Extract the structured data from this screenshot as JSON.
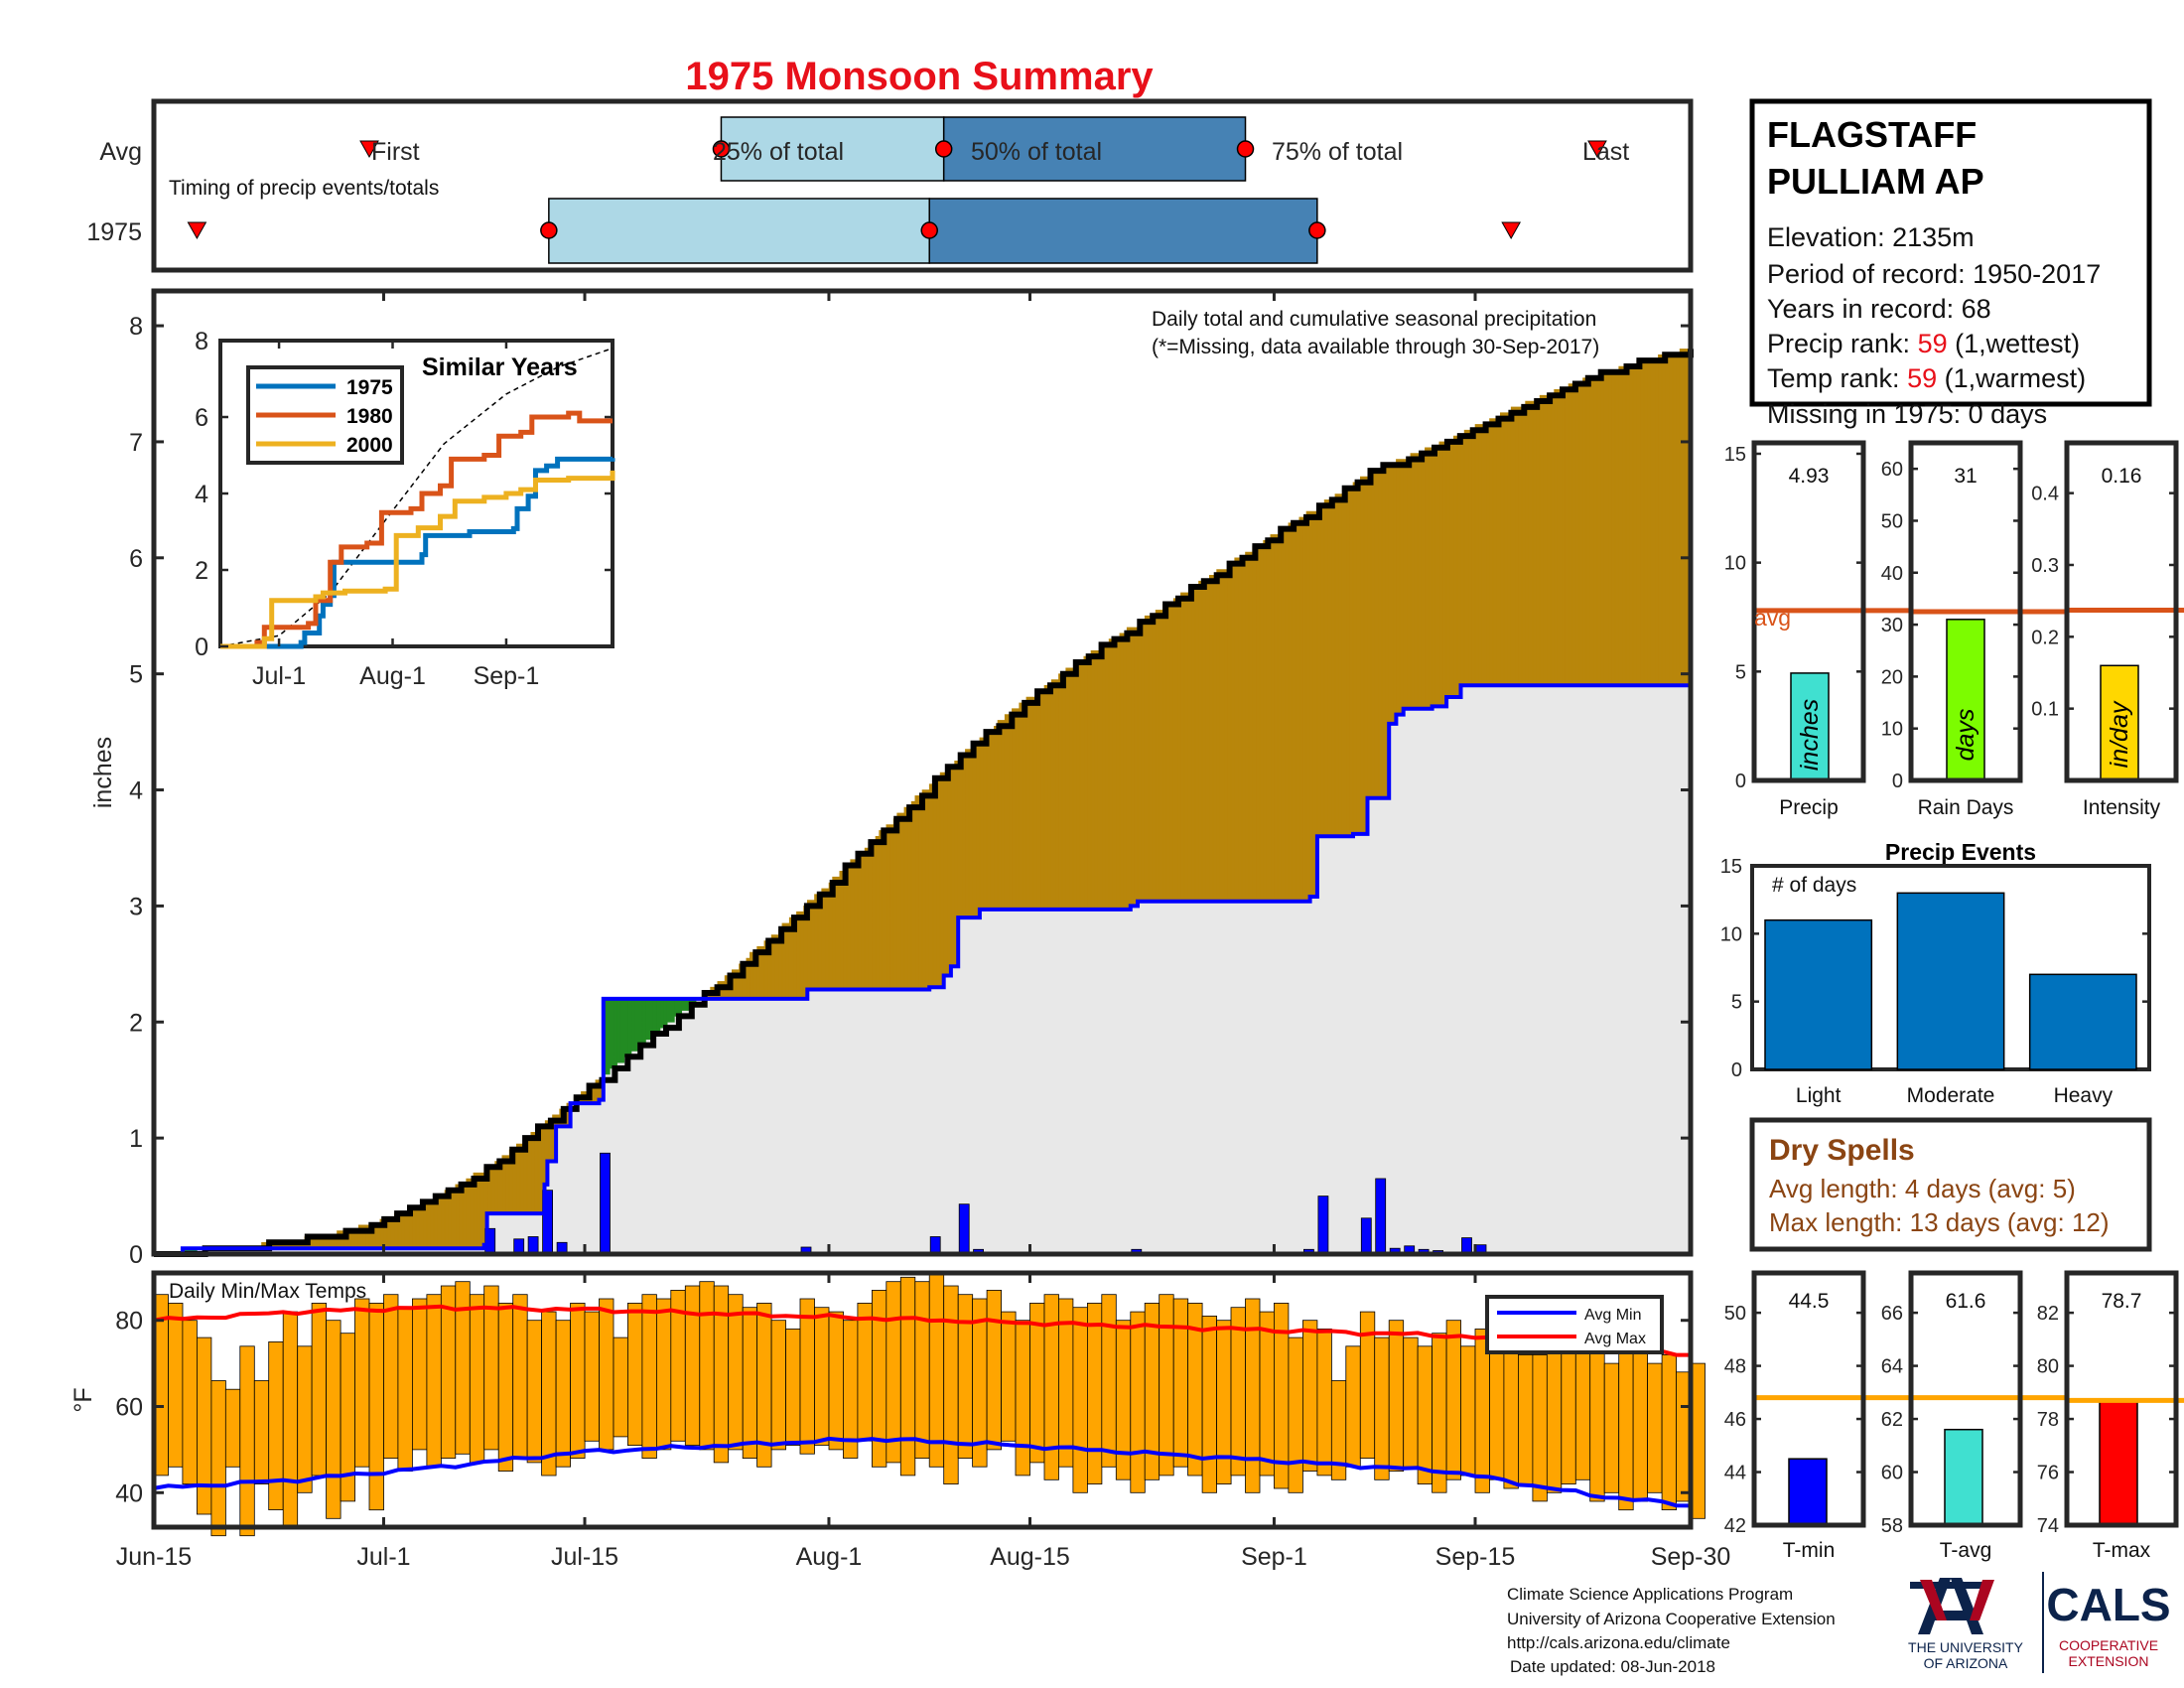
{
  "title": "1975 Monsoon Summary",
  "colors": {
    "title": "#e8101a",
    "light_blue": "#add8e6",
    "steel_blue": "#4682b4",
    "gold": "#b8860b",
    "green": "#228b22",
    "gray_fill": "#e8e8e8",
    "blue": "#0000ff",
    "avg_line": "#d95319",
    "temp_bar": "#ffa500",
    "bar_blue": "#0072bd",
    "precip_bar": "#40e0d0",
    "days_bar": "#7cfc00",
    "intensity_bar": "#ffd700",
    "red": "#ff0000",
    "dry": "#8b4513",
    "missing_note": "#e8101a",
    "marker_red": "#ff0000",
    "s1975": "#0072bd",
    "s1980": "#d95319",
    "s2000": "#edb120"
  },
  "timing": {
    "row_avg_label": "Avg",
    "row_year_label": "1975",
    "subtitle": "Timing of precip events/totals",
    "first_label": "First",
    "last_label": "Last",
    "p25_label": "25% of total",
    "p50_label": "50% of total",
    "p75_label": "75% of total"
  },
  "station": {
    "name_line1": "FLAGSTAFF",
    "name_line2": "PULLIAM AP",
    "elevation": "Elevation: 2135m",
    "period": "Period of record: 1950-2017",
    "years": "Years in record: 68",
    "precip_rank_label": "Precip rank: ",
    "precip_rank_value": "59",
    "precip_rank_note": " (1,wettest)",
    "temp_rank_label": "Temp rank: ",
    "temp_rank_value": "59",
    "temp_rank_note": " (1,warmest)",
    "missing": "Missing in 1975: 0 days"
  },
  "main_chart": {
    "ylabel": "inches",
    "note1": "Daily total and cumulative seasonal precipitation",
    "note2": "(*=Missing, data available through 30-Sep-2017)"
  },
  "inset": {
    "title": "Similar Years",
    "legend": [
      "1975",
      "1980",
      "2000"
    ]
  },
  "temps": {
    "title": "Daily Min/Max Temps",
    "ylabel": "°F",
    "legend_min": "Avg Min",
    "legend_max": "Avg Max"
  },
  "stat_panels": {
    "precip": {
      "value": "4.93",
      "unit": "inches",
      "label": "Precip",
      "avg_label": "avg"
    },
    "rain_days": {
      "value": "31",
      "unit": "days",
      "label": "Rain Days"
    },
    "intensity": {
      "value": "0.16",
      "unit": "in/day",
      "label": "Intensity"
    }
  },
  "events": {
    "title": "Precip Events",
    "ylabel": "# of days"
  },
  "dry_spells": {
    "title": "Dry Spells",
    "avg_length": "Avg length: 4 days (avg: 5)",
    "max_length": "Max length: 13 days (avg: 12)"
  },
  "temp_panels": {
    "tmin": {
      "value": "44.5",
      "label": "T-min"
    },
    "tavg": {
      "value": "61.6",
      "label": "T-avg"
    },
    "tmax": {
      "value": "78.7",
      "label": "T-max"
    }
  },
  "footer": {
    "line1": "Climate Science Applications Program",
    "line2": "University of Arizona Cooperative Extension",
    "line3": "http://cals.arizona.edu/climate",
    "line4": "Date updated: 08-Jun-2018",
    "ua_line1": "THE UNIVERSITY",
    "ua_line2": "OF ARIZONA",
    "cals": "CALS",
    "cals_sub1": "COOPERATIVE",
    "cals_sub2": "EXTENSION"
  },
  "chart_data": [
    {
      "type": "timeline",
      "name": "Timing of precip events/totals",
      "x_axis": "day of season (0 = Jun-15, 107 = Sep-30)",
      "avg": {
        "first": 15,
        "p25": 39.5,
        "p50": 55,
        "p75": 76,
        "last": 100.5
      },
      "year_1975": {
        "first": 3,
        "p25": 27.5,
        "p50": 54,
        "p75": 81,
        "last": 94.5
      }
    },
    {
      "type": "line",
      "name": "Daily total and cumulative seasonal precipitation",
      "xlabel": "",
      "ylabel": "inches",
      "ylim": [
        0,
        8.3
      ],
      "x_ticks": [
        {
          "label": "Jun-15",
          "day": 0
        },
        {
          "label": "Jul-1",
          "day": 16
        },
        {
          "label": "Jul-15",
          "day": 30
        },
        {
          "label": "Aug-1",
          "day": 47
        },
        {
          "label": "Aug-15",
          "day": 61
        },
        {
          "label": "Sep-1",
          "day": 78
        },
        {
          "label": "Sep-15",
          "day": 92
        },
        {
          "label": "Sep-30",
          "day": 107
        }
      ],
      "y_ticks": [
        0,
        1,
        2,
        3,
        4,
        5,
        6,
        7,
        8
      ],
      "avg_cumulative": {
        "x": [
          0,
          6,
          12,
          16,
          20,
          24,
          27,
          30,
          35,
          40,
          45,
          50,
          55,
          60,
          65,
          70,
          75,
          80,
          85,
          90,
          95,
          100,
          104,
          107
        ],
        "y": [
          0,
          0.05,
          0.15,
          0.28,
          0.5,
          0.8,
          1.1,
          1.4,
          1.9,
          2.4,
          2.95,
          3.55,
          4.15,
          4.7,
          5.15,
          5.55,
          5.95,
          6.35,
          6.75,
          7.0,
          7.3,
          7.55,
          7.7,
          7.8
        ]
      },
      "cumulative_1975": {
        "x": [
          0,
          2,
          23,
          23.2,
          27.2,
          27.4,
          28,
          29,
          31,
          31.3,
          45,
          45.5,
          54,
          55,
          55.5,
          56,
          57.5,
          68,
          68.5,
          80.5,
          81,
          83.5,
          84.5,
          86,
          86.5,
          87,
          89,
          90,
          91,
          107
        ],
        "y": [
          0,
          0.05,
          0.08,
          0.35,
          0.6,
          0.8,
          1.1,
          1.3,
          1.33,
          2.2,
          2.2,
          2.28,
          2.3,
          2.4,
          2.48,
          2.9,
          2.97,
          3.0,
          3.04,
          3.08,
          3.6,
          3.62,
          3.93,
          4.57,
          4.65,
          4.7,
          4.72,
          4.8,
          4.9,
          4.93
        ]
      },
      "daily_1975": {
        "x": [
          23,
          25,
          26,
          27,
          28,
          31,
          45,
          54,
          56,
          57,
          68,
          80,
          81,
          84,
          85,
          86,
          87,
          88,
          89,
          91,
          92
        ],
        "y": [
          0.22,
          0.13,
          0.15,
          0.55,
          0.1,
          0.87,
          0.06,
          0.15,
          0.43,
          0.04,
          0.04,
          0.04,
          0.5,
          0.31,
          0.65,
          0.05,
          0.07,
          0.04,
          0.03,
          0.14,
          0.08
        ]
      }
    },
    {
      "type": "line",
      "name": "Similar Years",
      "ylim": [
        0,
        8
      ],
      "x_ticks": [
        {
          "label": "Jul-1",
          "day": 16
        },
        {
          "label": "Aug-1",
          "day": 47
        },
        {
          "label": "Sep-1",
          "day": 78
        }
      ],
      "y_ticks": [
        0,
        2,
        4,
        6,
        8
      ],
      "avg": {
        "x": [
          0,
          16,
          30,
          47,
          61,
          78,
          92,
          107
        ],
        "y": [
          0,
          0.28,
          1.4,
          3.55,
          5.3,
          6.6,
          7.3,
          7.8
        ]
      },
      "series": [
        {
          "name": "1975",
          "x": [
            0,
            22,
            23,
            27,
            28,
            30,
            31,
            45,
            55,
            56,
            68,
            80,
            81,
            84,
            86,
            89,
            92,
            107
          ],
          "y": [
            0,
            0.1,
            0.35,
            0.8,
            1.1,
            1.33,
            2.2,
            2.2,
            2.4,
            2.9,
            3.0,
            3.08,
            3.6,
            3.93,
            4.6,
            4.72,
            4.9,
            4.93
          ]
        },
        {
          "name": "1980",
          "x": [
            0,
            10,
            12,
            24,
            26,
            30,
            33,
            40,
            44,
            52,
            55,
            60,
            63,
            72,
            76,
            82,
            85,
            95,
            98,
            107
          ],
          "y": [
            0,
            0.1,
            0.5,
            0.6,
            1.2,
            2.2,
            2.6,
            2.7,
            3.5,
            3.6,
            4.0,
            4.2,
            4.9,
            5.0,
            5.5,
            5.6,
            6.0,
            6.1,
            5.9,
            5.9
          ]
        },
        {
          "name": "2000",
          "x": [
            0,
            12,
            14,
            26,
            28,
            34,
            45,
            48,
            54,
            60,
            64,
            72,
            78,
            82,
            86,
            95,
            104,
            107
          ],
          "y": [
            0,
            0.2,
            1.2,
            1.3,
            1.4,
            1.45,
            1.5,
            2.9,
            3.1,
            3.4,
            3.8,
            3.9,
            4.0,
            4.1,
            4.35,
            4.4,
            4.4,
            4.6
          ]
        }
      ]
    },
    {
      "type": "bar",
      "name": "Daily Min/Max Temps",
      "ylabel": "°F",
      "ylim": [
        32,
        91
      ],
      "y_ticks": [
        40,
        60,
        80
      ],
      "avg_min": {
        "x": [
          0,
          10,
          20,
          30,
          40,
          50,
          60,
          70,
          80,
          90,
          100,
          107
        ],
        "y": [
          41,
          43,
          46,
          49.5,
          51,
          52.5,
          51,
          49,
          47,
          45,
          39.5,
          37
        ]
      },
      "avg_max": {
        "x": [
          0,
          10,
          20,
          30,
          40,
          50,
          60,
          70,
          80,
          90,
          100,
          107
        ],
        "y": [
          80,
          82,
          83,
          82.5,
          81.5,
          80.5,
          79.5,
          78.5,
          77.5,
          76.5,
          74,
          72
        ]
      },
      "tmax": [
        86,
        84,
        80,
        76,
        66,
        64,
        74,
        66,
        75,
        82,
        74,
        84,
        80,
        77,
        85,
        84,
        86,
        83,
        85,
        86,
        88,
        89,
        86,
        88,
        84,
        86,
        80,
        82,
        80,
        84,
        82,
        85,
        76,
        84,
        86,
        85,
        87,
        88,
        89,
        88,
        86,
        83,
        84,
        80,
        78,
        85,
        83,
        82,
        80,
        84,
        87,
        89,
        90,
        89,
        91,
        88,
        86,
        85,
        87,
        82,
        80,
        84,
        86,
        85,
        83,
        84,
        86,
        80,
        82,
        84,
        86,
        85,
        84,
        81,
        80,
        83,
        85,
        82,
        84,
        76,
        80,
        78,
        66,
        74,
        82,
        76,
        80,
        76,
        74,
        77,
        80,
        74,
        78,
        80,
        76,
        72,
        72,
        74,
        76,
        78,
        74,
        70,
        76,
        74,
        70,
        72,
        68,
        70
      ],
      "tmin": [
        44,
        46,
        42,
        35,
        30,
        46,
        30,
        42,
        36,
        32,
        40,
        44,
        34,
        38,
        46,
        36,
        48,
        45,
        50,
        46,
        48,
        49,
        47,
        50,
        45,
        48,
        47,
        44,
        46,
        48,
        52,
        50,
        53,
        51,
        48,
        50,
        52,
        51,
        50,
        47,
        50,
        48,
        46,
        50,
        51,
        49,
        51,
        50,
        48,
        52,
        46,
        47,
        44,
        48,
        46,
        42,
        48,
        46,
        50,
        52,
        44,
        47,
        43,
        46,
        40,
        42,
        46,
        43,
        40,
        43,
        44,
        46,
        44,
        40,
        42,
        44,
        40,
        44,
        41,
        40,
        45,
        44,
        43,
        46,
        48,
        43,
        45,
        46,
        42,
        40,
        43,
        44,
        40,
        43,
        41,
        42,
        38,
        40,
        42,
        43,
        38,
        40,
        36,
        38,
        40,
        36,
        38,
        34
      ]
    },
    {
      "type": "bar",
      "name": "Precip",
      "value": 4.93,
      "avg": 7.8,
      "ylim": [
        0,
        15.5
      ],
      "y_ticks": [
        0,
        5,
        10,
        15
      ]
    },
    {
      "type": "bar",
      "name": "Rain Days",
      "value": 31,
      "avg": 32.5,
      "ylim": [
        0,
        65
      ],
      "y_ticks": [
        0,
        10,
        20,
        30,
        40,
        50,
        60
      ]
    },
    {
      "type": "bar",
      "name": "Intensity",
      "value": 0.16,
      "avg": 0.237,
      "ylim": [
        0,
        0.47
      ],
      "y_ticks": [
        0.1,
        0.2,
        0.3,
        0.4
      ]
    },
    {
      "type": "bar",
      "name": "Precip Events",
      "ylabel": "# of days",
      "categories": [
        "Light",
        "Moderate",
        "Heavy"
      ],
      "values": [
        11,
        13,
        7
      ],
      "ylim": [
        0,
        15
      ],
      "y_ticks": [
        0,
        5,
        10,
        15
      ]
    },
    {
      "type": "bar",
      "name": "T-min",
      "value": 44.5,
      "avg": 46.8,
      "ylim": [
        42,
        51.5
      ],
      "y_ticks": [
        42,
        44,
        46,
        48,
        50
      ]
    },
    {
      "type": "bar",
      "name": "T-avg",
      "value": 61.6,
      "avg": 62.8,
      "ylim": [
        58,
        67.5
      ],
      "y_ticks": [
        58,
        60,
        62,
        64,
        66
      ]
    },
    {
      "type": "bar",
      "name": "T-max",
      "value": 78.7,
      "avg": 78.7,
      "ylim": [
        74,
        83.5
      ],
      "y_ticks": [
        74,
        76,
        78,
        80,
        82
      ]
    }
  ]
}
